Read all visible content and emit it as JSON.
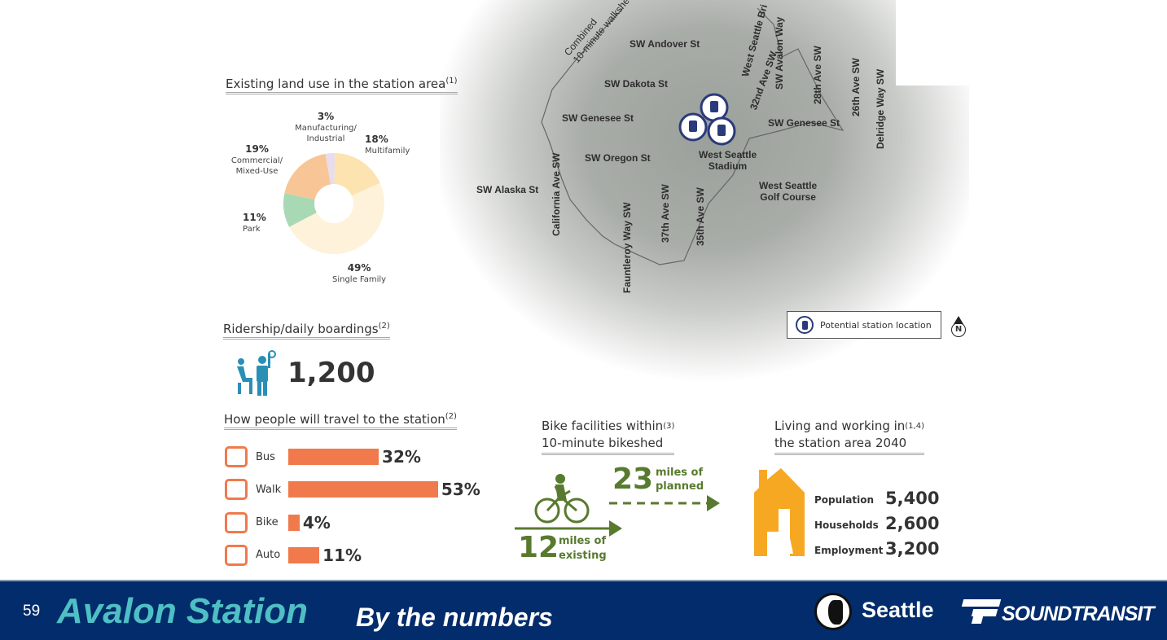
{
  "land_use": {
    "title": "Existing land use in the station area",
    "note": "(1)",
    "slices": [
      {
        "pct": "18%",
        "label": "Multifamily",
        "value": 18,
        "color": "#fde3b0"
      },
      {
        "pct": "49%",
        "label": "Single Family",
        "value": 49,
        "color": "#fef2da"
      },
      {
        "pct": "11%",
        "label": "Park",
        "value": 11,
        "color": "#a8d9b4"
      },
      {
        "pct": "19%",
        "label": "Commercial/ Mixed-Use",
        "value": 19,
        "color": "#f8c696"
      },
      {
        "pct": "3%",
        "label": "Manufacturing/ Industrial",
        "value": 3,
        "color": "#e9dcec"
      }
    ]
  },
  "ridership": {
    "title": "Ridership/daily boardings",
    "note": "(2)",
    "value": "1,200"
  },
  "travel": {
    "title": "How people will travel to the station",
    "note": "(2)",
    "modes": [
      {
        "label": "Bus",
        "pct": "32%",
        "value": 32
      },
      {
        "label": "Walk",
        "pct": "53%",
        "value": 53
      },
      {
        "label": "Bike",
        "pct": "4%",
        "value": 4
      },
      {
        "label": "Auto",
        "pct": "11%",
        "value": 11
      }
    ]
  },
  "bike": {
    "title1": "Bike facilities within",
    "title2": "10-minute bikeshed",
    "note": "(3)",
    "planned_num": "23",
    "planned_l1": "miles of",
    "planned_l2": "planned",
    "existing_num": "12",
    "existing_l1": "miles of",
    "existing_l2": "existing"
  },
  "living": {
    "title1": "Living and working in",
    "title2": "the station area 2040",
    "note": "(1,4)",
    "stats": [
      {
        "label": "Population",
        "value": "5,400"
      },
      {
        "label": "Households",
        "value": "2,600"
      },
      {
        "label": "Employment",
        "value": "3,200"
      }
    ]
  },
  "map": {
    "walkshed1": "Combined",
    "walkshed2": "10-minute walkshed",
    "streets": {
      "andover": "SW Andover St",
      "dakota": "SW Dakota St",
      "genesee_w": "SW Genesee St",
      "genesee_e": "SW Genesee St",
      "oregon": "SW Oregon St",
      "alaska": "SW Alaska St",
      "california": "California Ave SW",
      "fauntleroy": "Fauntleroy Way SW",
      "ave37": "37th Ave SW",
      "ave35": "35th Ave SW",
      "ave32": "32nd Ave SW",
      "bridge": "West Seattle Bri",
      "avalon": "SW Avalon Way",
      "ave28": "28th Ave SW",
      "ave26": "26th Ave SW",
      "delridge": "Delridge Way SW"
    },
    "stadium1": "West Seattle",
    "stadium2": "Stadium",
    "golf1": "West Seattle",
    "golf2": "Golf Course",
    "legend": "Potential station location",
    "north": "N"
  },
  "footer": {
    "page": "59",
    "title": "Avalon Station",
    "subtitle": "By the numbers",
    "seattle": "Seattle",
    "soundtransit": "SoundTransit"
  },
  "colors": {
    "navy": "#022c6b",
    "teal": "#4fbfc4",
    "orange": "#f07a4b",
    "green": "#587a2f",
    "house": "#f7a823",
    "station": "#2b3a7a"
  }
}
